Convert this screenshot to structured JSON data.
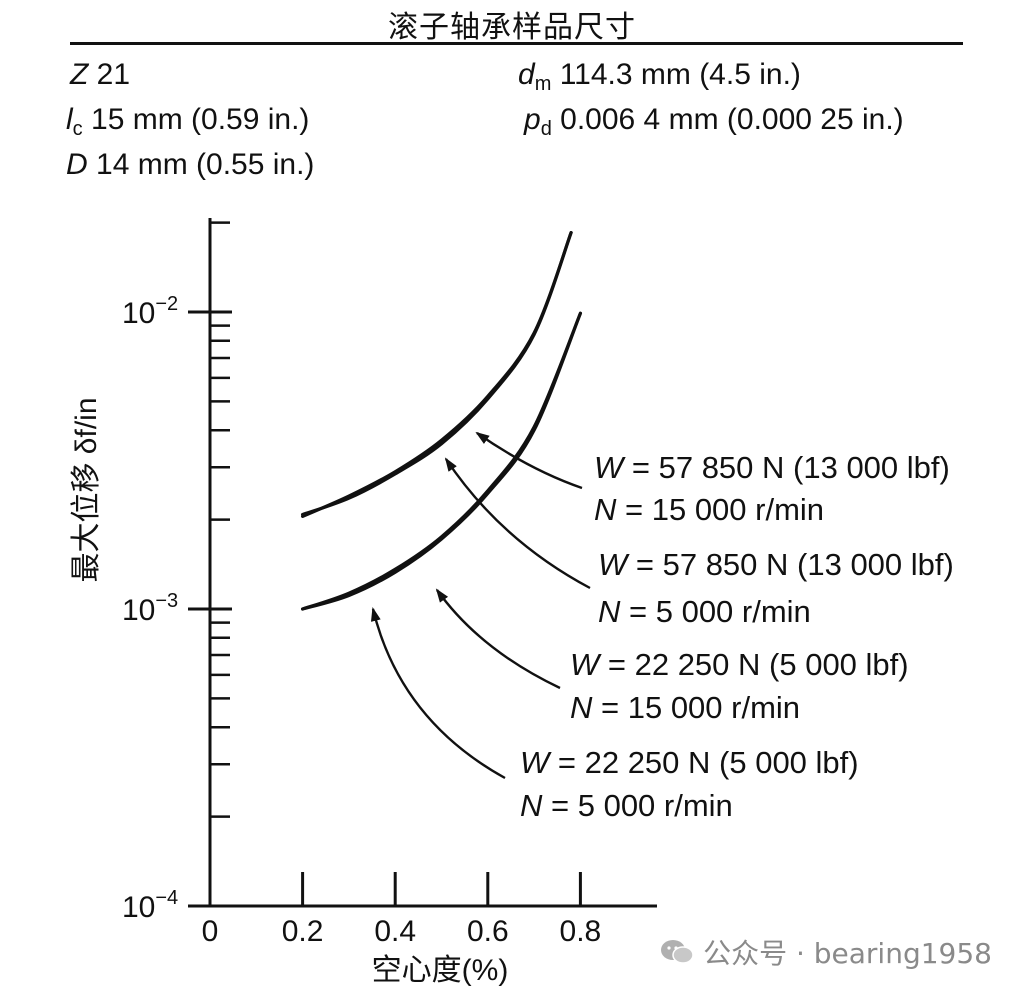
{
  "header": {
    "title": "滚子轴承样品尺寸"
  },
  "params": {
    "z": {
      "symbol": "Z",
      "value": " 21"
    },
    "lc": {
      "symbol": "l",
      "sub": "c",
      "value": " 15 mm (0.59 in.)"
    },
    "d": {
      "symbol": "D",
      "value": " 14 mm (0.55 in.)"
    },
    "dm": {
      "symbol": "d",
      "sub": "m",
      "value": " 114.3 mm (4.5 in.)"
    },
    "pd": {
      "symbol": "p",
      "sub": "d",
      "value": " 0.006 4 mm (0.000 25 in.)"
    }
  },
  "chart_data": {
    "type": "line",
    "xlabel": "空心度(%)",
    "ylabel": "最大位移 δf/in",
    "xlim": [
      0,
      0.95
    ],
    "ylim": [
      0.0001,
      0.02
    ],
    "yscale": "log",
    "xticks": [
      0,
      0.2,
      0.4,
      0.6,
      0.8
    ],
    "xtick_labels": [
      "0",
      "0.2",
      "0.4",
      "0.6",
      "0.8"
    ],
    "ytick_labels": [
      {
        "value": 0.01,
        "base": "10",
        "exp": "−2"
      },
      {
        "value": 0.001,
        "base": "10",
        "exp": "−3"
      },
      {
        "value": 0.0001,
        "base": "10",
        "exp": "−4"
      }
    ],
    "series": [
      {
        "line1": "W = 57 850 N (13 000 lbf)",
        "line2": "N = 15 000 r/min",
        "points": [
          [
            0.2,
            0.00205
          ],
          [
            0.3,
            0.0024
          ],
          [
            0.4,
            0.0029
          ],
          [
            0.5,
            0.0037
          ],
          [
            0.6,
            0.0052
          ],
          [
            0.7,
            0.0085
          ],
          [
            0.78,
            0.0185
          ]
        ]
      },
      {
        "line1": "W = 57 850 N (13 000 lbf)",
        "line2": "N = 5 000 r/min",
        "points": [
          [
            0.2,
            0.00208
          ],
          [
            0.3,
            0.00236
          ],
          [
            0.4,
            0.00285
          ],
          [
            0.5,
            0.0036
          ],
          [
            0.6,
            0.0051
          ],
          [
            0.7,
            0.0084
          ],
          [
            0.78,
            0.0185
          ]
        ]
      },
      {
        "line1": "W = 22 250 N (5 000 lbf)",
        "line2": "N = 15 000 r/min",
        "points": [
          [
            0.2,
            0.001
          ],
          [
            0.3,
            0.00113
          ],
          [
            0.4,
            0.00136
          ],
          [
            0.5,
            0.00175
          ],
          [
            0.6,
            0.0025
          ],
          [
            0.7,
            0.0041
          ],
          [
            0.8,
            0.0099
          ]
        ]
      },
      {
        "line1": "W = 22 250 N (5 000 lbf)",
        "line2": "N = 5 000 r/min",
        "points": [
          [
            0.2,
            0.001
          ],
          [
            0.3,
            0.00111
          ],
          [
            0.4,
            0.00133
          ],
          [
            0.5,
            0.00172
          ],
          [
            0.6,
            0.00245
          ],
          [
            0.7,
            0.004
          ],
          [
            0.8,
            0.0099
          ]
        ]
      }
    ]
  },
  "watermark": {
    "text": "公众号 · bearing1958"
  }
}
